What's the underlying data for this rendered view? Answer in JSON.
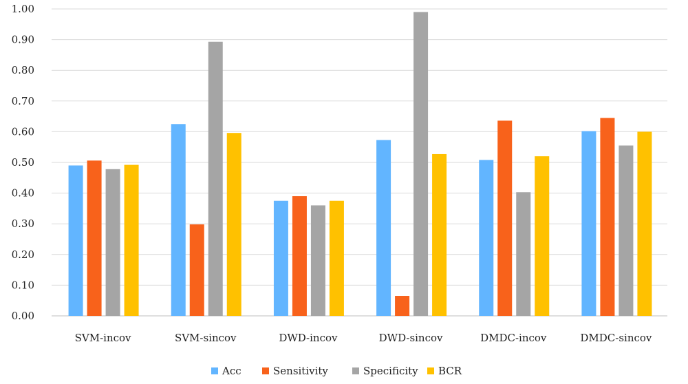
{
  "chart_data": {
    "type": "bar",
    "title": "",
    "xlabel": "",
    "ylabel": "",
    "categories": [
      "SVM-incov",
      "SVM-sincov",
      "DWD-incov",
      "DWD-sincov",
      "DMDC-incov",
      "DMDC-sincov"
    ],
    "series": [
      {
        "name": "Acc",
        "color": "#62B5FF",
        "values": [
          0.49,
          0.625,
          0.375,
          0.573,
          0.508,
          0.602
        ]
      },
      {
        "name": "Sensitivity",
        "color": "#F8621B",
        "values": [
          0.506,
          0.298,
          0.39,
          0.065,
          0.636,
          0.645
        ]
      },
      {
        "name": "Specificity",
        "color": "#A5A5A5",
        "values": [
          0.478,
          0.893,
          0.36,
          0.99,
          0.403,
          0.555
        ]
      },
      {
        "name": "BCR",
        "color": "#FFC100",
        "values": [
          0.492,
          0.596,
          0.375,
          0.527,
          0.52,
          0.6
        ]
      }
    ],
    "ylim": [
      0,
      1
    ],
    "yticks": [
      "0.00",
      "0.10",
      "0.20",
      "0.30",
      "0.40",
      "0.50",
      "0.60",
      "0.70",
      "0.80",
      "0.90",
      "1.00"
    ],
    "grid": true,
    "legend_position": "bottom"
  }
}
